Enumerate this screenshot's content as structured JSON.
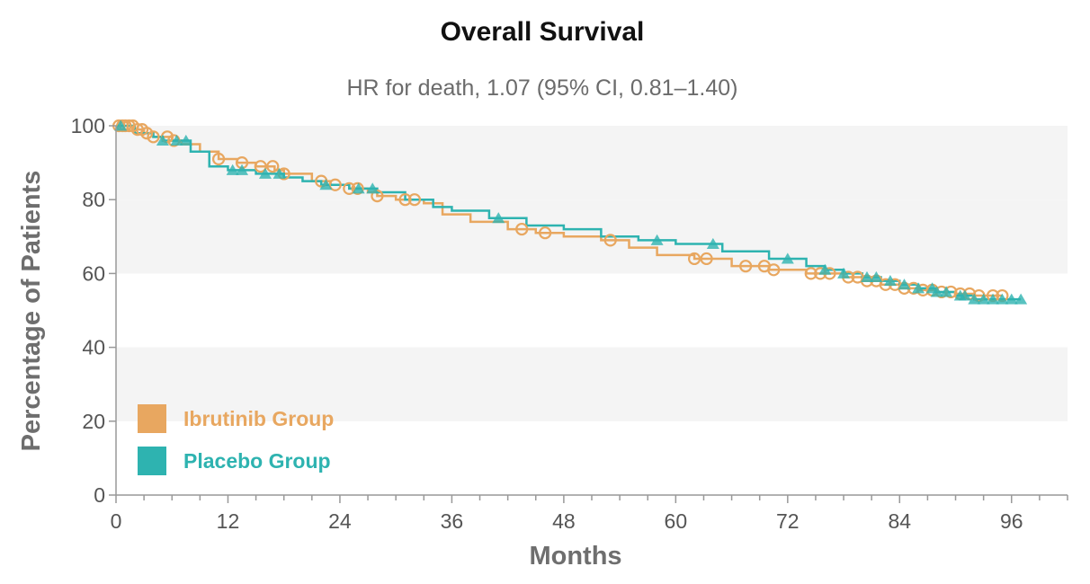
{
  "chart_data": {
    "type": "line",
    "title": "Overall Survival",
    "subtitle": "HR for death, 1.07 (95% CI, 0.81–1.40)",
    "xlabel": "Months",
    "ylabel": "Percentage of Patients",
    "xlim": [
      0,
      102
    ],
    "ylim": [
      0,
      100
    ],
    "x_ticks": [
      0,
      12,
      24,
      36,
      48,
      60,
      72,
      84,
      96
    ],
    "x_tick_labels": [
      "0",
      "12",
      "24",
      "36",
      "48",
      "60",
      "72",
      "84",
      "96"
    ],
    "y_ticks": [
      0,
      20,
      40,
      60,
      80,
      100
    ],
    "y_tick_labels": [
      "0",
      "20",
      "40",
      "60",
      "80",
      "100"
    ],
    "background_bands": [
      [
        20,
        40
      ],
      [
        60,
        80
      ]
    ],
    "colors": {
      "ibrutinib": "#e8a760",
      "placebo": "#2eb3b0",
      "band": "#f4f4f4",
      "axis": "#999999"
    },
    "legend": {
      "position": "bottom-left",
      "items": [
        {
          "label": "Ibrutinib Group",
          "color": "#e8a760"
        },
        {
          "label": "Placebo Group",
          "color": "#2eb3b0"
        }
      ]
    },
    "series": [
      {
        "name": "Ibrutinib Group",
        "color": "#e8a760",
        "censor_marker": "circle",
        "x": [
          0,
          2,
          3,
          4,
          6,
          7,
          9,
          11,
          13,
          15,
          17,
          18,
          21,
          23,
          25,
          27,
          28,
          30,
          33,
          35,
          38,
          42,
          45,
          48,
          52,
          55,
          58,
          62,
          66,
          70,
          74,
          78,
          80,
          82,
          84,
          86,
          88,
          90,
          92,
          93,
          95
        ],
        "values": [
          100,
          99,
          98,
          97,
          96,
          95,
          93,
          91,
          90,
          89,
          88,
          87,
          85,
          84,
          83,
          82,
          81,
          80,
          79,
          76,
          74,
          72,
          71,
          70,
          69,
          67,
          65,
          64,
          62,
          61,
          60,
          59,
          58,
          57,
          56,
          55.5,
          55,
          54.5,
          54,
          54,
          54
        ],
        "censored": [
          0.3,
          0.7,
          1.0,
          1.4,
          1.8,
          2.3,
          2.8,
          3.3,
          4.0,
          5.5,
          6.2,
          11,
          13.5,
          15.5,
          16.8,
          18,
          22,
          23.5,
          25,
          25.9,
          28,
          31,
          32,
          43.5,
          46,
          53,
          62,
          63.3,
          67.5,
          69.5,
          70.5,
          74.5,
          75.5,
          76.5,
          78.5,
          79.5,
          80.5,
          81.5,
          82.5,
          83.5,
          84.5,
          85.5,
          86.5,
          87.5,
          88.5,
          89.5,
          90.5,
          91.5,
          92.5,
          94,
          95
        ]
      },
      {
        "name": "Placebo Group",
        "color": "#2eb3b0",
        "censor_marker": "triangle",
        "x": [
          0,
          2,
          4,
          5,
          8,
          10,
          12,
          15,
          18,
          20,
          22,
          25,
          28,
          31,
          34,
          36,
          40,
          44,
          48,
          52,
          56,
          60,
          65,
          70,
          74,
          76,
          78,
          80,
          82,
          84,
          86,
          88,
          90,
          92,
          97
        ],
        "values": [
          100,
          98,
          97,
          96,
          93,
          89,
          88,
          87,
          86,
          85,
          84,
          83,
          82,
          80,
          78,
          77,
          75,
          73,
          72,
          70,
          69,
          68,
          66,
          64,
          62,
          61,
          60,
          59,
          58,
          57,
          56,
          55,
          54,
          53,
          53
        ],
        "censored": [
          0.5,
          5,
          6.5,
          7.5,
          12.5,
          13.5,
          16,
          17.5,
          22.5,
          26,
          27.5,
          41,
          58,
          64,
          72,
          76,
          78,
          80.5,
          81.5,
          83,
          84.5,
          86,
          87.5,
          88,
          89,
          90.5,
          91,
          92,
          93,
          94,
          95,
          96,
          97
        ]
      }
    ]
  }
}
